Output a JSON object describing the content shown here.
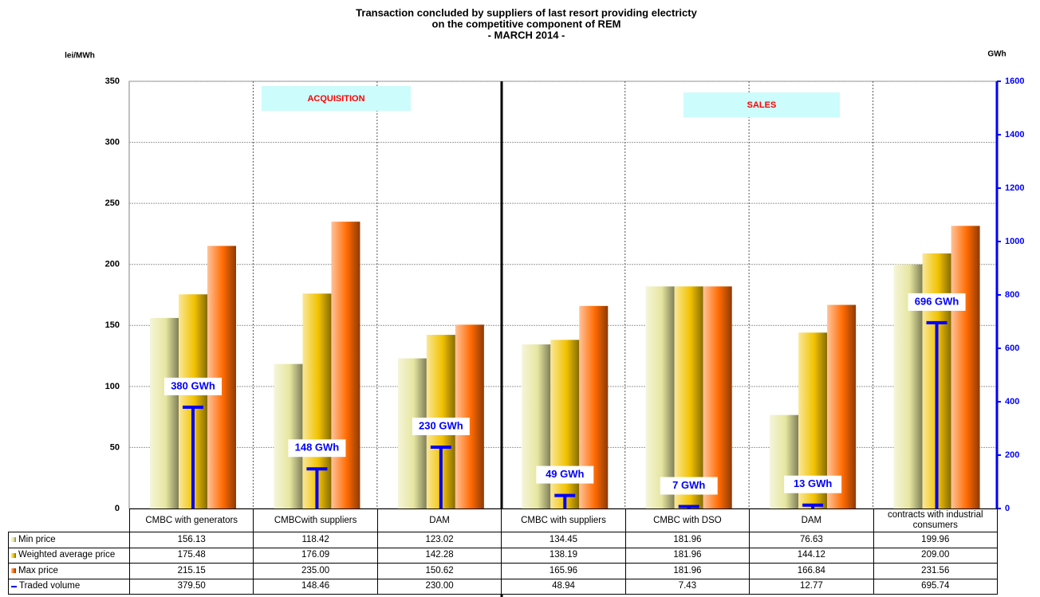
{
  "chart_data": {
    "type": "bar",
    "title": "Transaction concluded by suppliers of last resort providing electricty",
    "subtitle": "on the competitive component of REM",
    "period": "- MARCH 2014 -",
    "y_label": "lei/MWh",
    "y2_label": "GWh",
    "annotations": [
      "ACQUISITION",
      "SALES"
    ],
    "categories": [
      "CMBC with generators",
      "CMBCwith suppliers",
      "DAM",
      "CMBC with suppliers",
      "CMBC with DSO",
      "DAM",
      "contracts with industrial consumers"
    ],
    "series": [
      {
        "name": "Min price",
        "color": "#e6e6a0",
        "values": [
          156.13,
          118.42,
          123.02,
          134.45,
          181.96,
          76.63,
          199.96
        ],
        "value_labels": [
          "156.13",
          "118.42",
          "123.02",
          "134.45",
          "181.96",
          "76.63",
          "199.96"
        ]
      },
      {
        "name": "Weighted average price",
        "color": "#f2c200",
        "values": [
          175.48,
          176.09,
          142.28,
          138.19,
          181.96,
          144.12,
          209.0
        ],
        "value_labels": [
          "175.48",
          "176.09",
          "142.28",
          "138.19",
          "181.96",
          "144.12",
          "209.00"
        ]
      },
      {
        "name": "Max price",
        "color": "#ff6a00",
        "values": [
          215.15,
          235.0,
          150.62,
          165.96,
          181.96,
          166.84,
          231.56
        ],
        "value_labels": [
          "215.15",
          "235.00",
          "150.62",
          "165.96",
          "181.96",
          "166.84",
          "231.56"
        ]
      },
      {
        "name": "Traded volume",
        "color": "#0000ff",
        "axis": "y2",
        "values": [
          379.5,
          148.46,
          230.0,
          48.94,
          7.43,
          12.77,
          695.74
        ],
        "value_labels": [
          "379.50",
          "148.46",
          "230.00",
          "48.94",
          "7.43",
          "12.77",
          "695.74"
        ],
        "data_labels": [
          "380 GWh",
          "148 GWh",
          "230 GWh",
          "49 GWh",
          "7 GWh",
          "13 GWh",
          "696 GWh"
        ]
      }
    ],
    "ylim": [
      0,
      350
    ],
    "yticks": [
      0,
      50,
      100,
      150,
      200,
      250,
      300,
      350
    ],
    "y2lim": [
      0,
      1600
    ],
    "y2ticks": [
      0,
      200,
      400,
      600,
      800,
      1000,
      1200,
      1400,
      1600
    ],
    "grid": true
  }
}
